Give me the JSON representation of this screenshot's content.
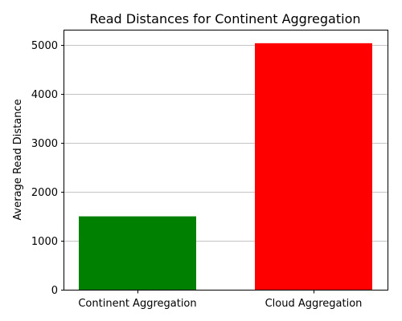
{
  "chart_data": {
    "type": "bar",
    "title": "Read Distances for Continent Aggregation",
    "xlabel": "",
    "ylabel": "Average Read Distance",
    "categories": [
      "Continent Aggregation",
      "Cloud Aggregation"
    ],
    "values": [
      1500,
      5040
    ],
    "colors": [
      "#008000",
      "#ff0000"
    ],
    "ylim": [
      0,
      5300
    ],
    "yticks": [
      0,
      1000,
      2000,
      3000,
      4000,
      5000
    ],
    "grid": "y-major",
    "legend": "none"
  }
}
